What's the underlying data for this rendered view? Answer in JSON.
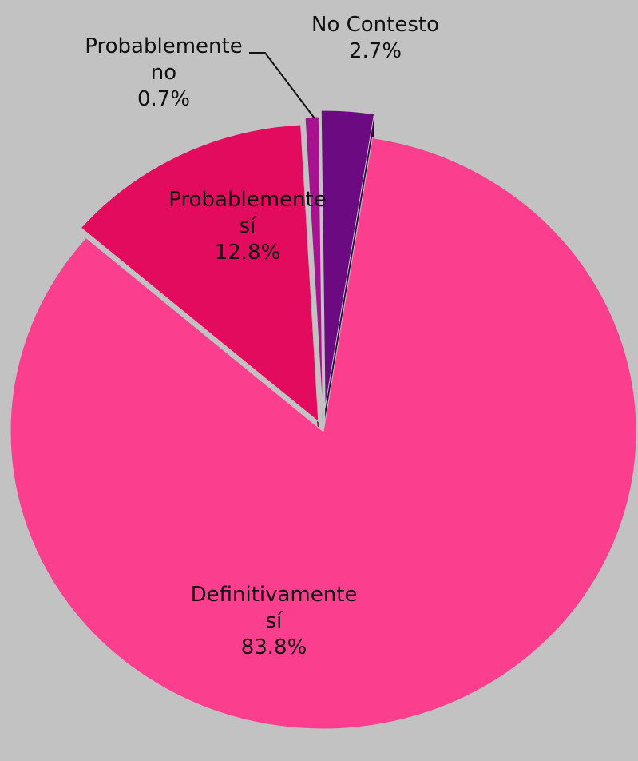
{
  "chart_data": {
    "type": "pie",
    "categories": [
      "Definitivamente sí",
      "Probablemente sí",
      "Probablemente no",
      "No Contesto"
    ],
    "values": [
      83.8,
      12.8,
      0.7,
      2.7
    ],
    "value_labels": [
      "83.8%",
      "12.8%",
      "0.7%",
      "2.7%"
    ],
    "colors": [
      "#fb3f8e",
      "#e20b5e",
      "#a6128f",
      "#6c0a82"
    ]
  }
}
